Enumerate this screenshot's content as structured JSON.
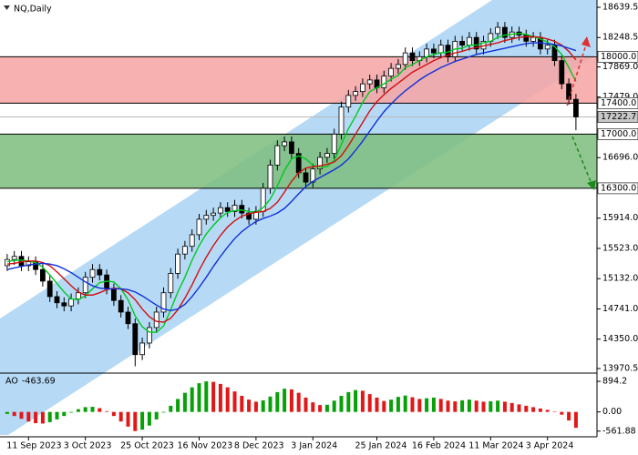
{
  "chart_data": {
    "type": "candlestick",
    "title": "NQ,Daily",
    "categories": [
      null,
      null,
      null,
      "11 Sep 2023",
      null,
      null,
      null,
      null,
      null,
      null,
      null,
      "3 Oct 2023",
      null,
      null,
      null,
      null,
      null,
      null,
      null,
      "25 Oct 2023",
      null,
      null,
      null,
      null,
      null,
      null,
      null,
      "16 Nov 2023",
      null,
      null,
      null,
      null,
      null,
      null,
      null,
      "8 Dec 2023",
      null,
      null,
      null,
      null,
      null,
      null,
      null,
      "3 Jan 2024",
      null,
      null,
      null,
      null,
      null,
      null,
      null,
      null,
      "25 Jan 2024",
      null,
      null,
      null,
      null,
      null,
      null,
      null,
      "16 Feb 2024",
      null,
      null,
      null,
      null,
      null,
      null,
      null,
      "11 Mar 2024",
      null,
      null,
      null,
      null,
      null,
      null,
      null,
      "3 Apr 2024",
      null,
      null,
      null,
      null
    ],
    "open": [
      15300,
      15380,
      15420,
      15300,
      15350,
      15250,
      15100,
      14900,
      14820,
      14780,
      14870,
      14950,
      15150,
      15250,
      15180,
      15000,
      14850,
      14700,
      14550,
      14150,
      14300,
      14500,
      14700,
      14950,
      15200,
      15450,
      15550,
      15700,
      15900,
      15950,
      15980,
      16050,
      16000,
      16080,
      15980,
      15900,
      16000,
      16300,
      16600,
      16850,
      16900,
      16750,
      16500,
      16380,
      16550,
      16700,
      16750,
      17000,
      17350,
      17500,
      17550,
      17650,
      17700,
      17600,
      17750,
      17850,
      17900,
      18050,
      17950,
      18000,
      18100,
      18050,
      18150,
      18000,
      18200,
      18150,
      18250,
      18100,
      18200,
      18300,
      18380,
      18250,
      18320,
      18280,
      18200,
      18250,
      18100,
      18150,
      17950,
      17650,
      17450
    ],
    "high": [
      15450,
      15490,
      15490,
      15420,
      15420,
      15320,
      15170,
      14970,
      14890,
      14940,
      15020,
      15220,
      15320,
      15320,
      15250,
      15070,
      14920,
      14770,
      14620,
      14370,
      14570,
      14770,
      15020,
      15270,
      15520,
      15620,
      15770,
      15970,
      16020,
      16050,
      16120,
      16120,
      16150,
      16150,
      16050,
      16070,
      16370,
      16670,
      16920,
      16970,
      16970,
      16820,
      16570,
      16620,
      16770,
      16820,
      17070,
      17420,
      17570,
      17620,
      17720,
      17770,
      17770,
      17820,
      17920,
      17970,
      18120,
      18120,
      18070,
      18170,
      18170,
      18220,
      18220,
      18270,
      18270,
      18320,
      18320,
      18270,
      18370,
      18450,
      18450,
      18390,
      18390,
      18350,
      18320,
      18320,
      18220,
      18220,
      18020,
      17720,
      17520
    ],
    "low": [
      15230,
      15310,
      15230,
      15230,
      15180,
      15030,
      14830,
      14750,
      14710,
      14710,
      14800,
      14880,
      15080,
      15110,
      14930,
      14780,
      14630,
      14480,
      14000,
      14080,
      14230,
      14430,
      14630,
      14880,
      15130,
      15380,
      15480,
      15630,
      15830,
      15880,
      15910,
      15930,
      15930,
      15910,
      15830,
      15830,
      15930,
      16230,
      16530,
      16780,
      16680,
      16430,
      16310,
      16310,
      16480,
      16630,
      16680,
      16930,
      17280,
      17430,
      17480,
      17580,
      17530,
      17530,
      17680,
      17780,
      17830,
      17880,
      17880,
      17930,
      17980,
      17980,
      17930,
      17930,
      18080,
      18080,
      18030,
      18030,
      18130,
      18230,
      18180,
      18180,
      18210,
      18130,
      18130,
      18030,
      18030,
      17880,
      17580,
      17380,
      17050
    ],
    "close": [
      15380,
      15420,
      15300,
      15350,
      15250,
      15100,
      14900,
      14820,
      14780,
      14870,
      14950,
      15150,
      15250,
      15180,
      15000,
      14850,
      14700,
      14550,
      14150,
      14300,
      14500,
      14700,
      14950,
      15200,
      15450,
      15550,
      15700,
      15900,
      15950,
      15980,
      16050,
      16000,
      16080,
      15980,
      15900,
      16000,
      16300,
      16600,
      16850,
      16900,
      16750,
      16500,
      16380,
      16550,
      16700,
      16750,
      17000,
      17350,
      17500,
      17550,
      17650,
      17700,
      17600,
      17750,
      17850,
      17900,
      18050,
      17950,
      18000,
      18100,
      18050,
      18150,
      18000,
      18200,
      18150,
      18250,
      18100,
      18200,
      18300,
      18380,
      18250,
      18320,
      18280,
      18200,
      18250,
      18100,
      18150,
      17950,
      17650,
      17450,
      17222.7
    ],
    "up_color": "#ffffff",
    "down_color": "#000000",
    "lines": [
      {
        "color": "#00c81e",
        "values": [
          15350,
          15370,
          15370,
          15360,
          15340,
          15280,
          15180,
          15070,
          14960,
          14870,
          14860,
          14910,
          15000,
          15080,
          15100,
          15090,
          15000,
          14860,
          14650,
          14510,
          14440,
          14440,
          14520,
          14730,
          14960,
          15150,
          15370,
          15560,
          15710,
          15820,
          15920,
          15990,
          16010,
          16020,
          16000,
          15990,
          16050,
          16160,
          16330,
          16530,
          16680,
          16720,
          16680,
          16600,
          16570,
          16580,
          16660,
          16870,
          17070,
          17230,
          17410,
          17550,
          17600,
          17650,
          17710,
          17760,
          17860,
          17900,
          17950,
          18000,
          18030,
          18050,
          18060,
          18100,
          18110,
          18150,
          18150,
          18180,
          18200,
          18250,
          18280,
          18290,
          18300,
          18290,
          18260,
          18230,
          18190,
          18130,
          18030,
          17860,
          17680
        ]
      },
      {
        "color": "#d01010",
        "values": [
          15320,
          15330,
          15350,
          15360,
          15360,
          15340,
          15300,
          15220,
          15130,
          15040,
          14960,
          14920,
          14920,
          14950,
          14990,
          15010,
          15000,
          14950,
          14860,
          14740,
          14640,
          14580,
          14570,
          14620,
          14730,
          14880,
          15050,
          15240,
          15410,
          15560,
          15690,
          15800,
          15880,
          15940,
          15970,
          15990,
          16000,
          16040,
          16120,
          16250,
          16390,
          16500,
          16560,
          16580,
          16590,
          16610,
          16640,
          16720,
          16850,
          17000,
          17150,
          17300,
          17420,
          17510,
          17590,
          17660,
          17730,
          17800,
          17850,
          17900,
          17950,
          17990,
          18020,
          18050,
          18070,
          18100,
          18120,
          18140,
          18160,
          18180,
          18210,
          18230,
          18250,
          18260,
          18260,
          18250,
          18230,
          18200,
          18150,
          18070,
          17960
        ]
      },
      {
        "color": "#1030d8",
        "values": [
          15250,
          15270,
          15290,
          15310,
          15320,
          15330,
          15320,
          15300,
          15260,
          15210,
          15150,
          15090,
          15040,
          15010,
          15000,
          15000,
          15000,
          14990,
          14960,
          14910,
          14850,
          14790,
          14740,
          14720,
          14740,
          14800,
          14900,
          15020,
          15150,
          15290,
          15420,
          15540,
          15650,
          15740,
          15810,
          15870,
          15910,
          15940,
          15980,
          16040,
          16130,
          16230,
          16320,
          16390,
          16440,
          16490,
          16540,
          16600,
          16680,
          16790,
          16910,
          17040,
          17170,
          17290,
          17390,
          17480,
          17560,
          17630,
          17700,
          17760,
          17810,
          17860,
          17900,
          17940,
          17970,
          18000,
          18030,
          18050,
          18070,
          18090,
          18110,
          18130,
          18150,
          18170,
          18180,
          18180,
          18170,
          18160,
          18140,
          18110,
          18080
        ]
      }
    ],
    "ylim": [
      13911.5,
      18733.5
    ],
    "yticks": [
      18639.5,
      18248.5,
      {
        "value": 17869,
        "label": "17869.0"
      },
      {
        "value": 17479,
        "label": "17479.0"
      },
      {
        "value": 16696,
        "label": "16696.0"
      },
      {
        "value": 15914,
        "label": "15914.0"
      },
      {
        "value": 15523,
        "label": "15523.0"
      },
      {
        "value": 15132,
        "label": "15132.0"
      },
      {
        "value": 14741,
        "label": "14741.0"
      },
      {
        "value": 14350,
        "label": "14350.0"
      },
      13970.5
    ],
    "zones": [
      {
        "from": {
          "value": 18000,
          "label": "18000.0"
        },
        "to": {
          "value": 17400,
          "label": "17400.0"
        },
        "color": "#f7a3a3"
      },
      {
        "from": {
          "value": 17000,
          "label": "17000.0"
        },
        "to": {
          "value": 16300,
          "label": "16300.0"
        },
        "color": "#7dbd7d"
      }
    ],
    "current_price": 17222.7,
    "indicator": {
      "type": "bar",
      "name": "AO",
      "up_color": "#08a008",
      "down_color": "#e01818",
      "values": [
        -60,
        -120,
        -200,
        -280,
        -330,
        -340,
        -300,
        -220,
        -120,
        -20,
        80,
        140,
        150,
        110,
        20,
        -120,
        -280,
        -430,
        -560,
        -520,
        -400,
        -220,
        -20,
        180,
        380,
        560,
        720,
        840,
        894.2,
        880,
        820,
        720,
        600,
        470,
        360,
        300,
        340,
        450,
        580,
        680,
        660,
        560,
        420,
        280,
        200,
        210,
        330,
        470,
        580,
        640,
        620,
        520,
        420,
        320,
        360,
        440,
        480,
        430,
        380,
        400,
        420,
        380,
        330,
        310,
        340,
        360,
        330,
        300,
        310,
        330,
        300,
        260,
        220,
        180,
        140,
        100,
        60,
        10,
        -80,
        -250,
        -463.69
      ],
      "ylim": [
        -675,
        1110
      ],
      "yticks": [
        894.2,
        {
          "value": 0,
          "label": "0.00"
        },
        -561.88
      ]
    }
  }
}
